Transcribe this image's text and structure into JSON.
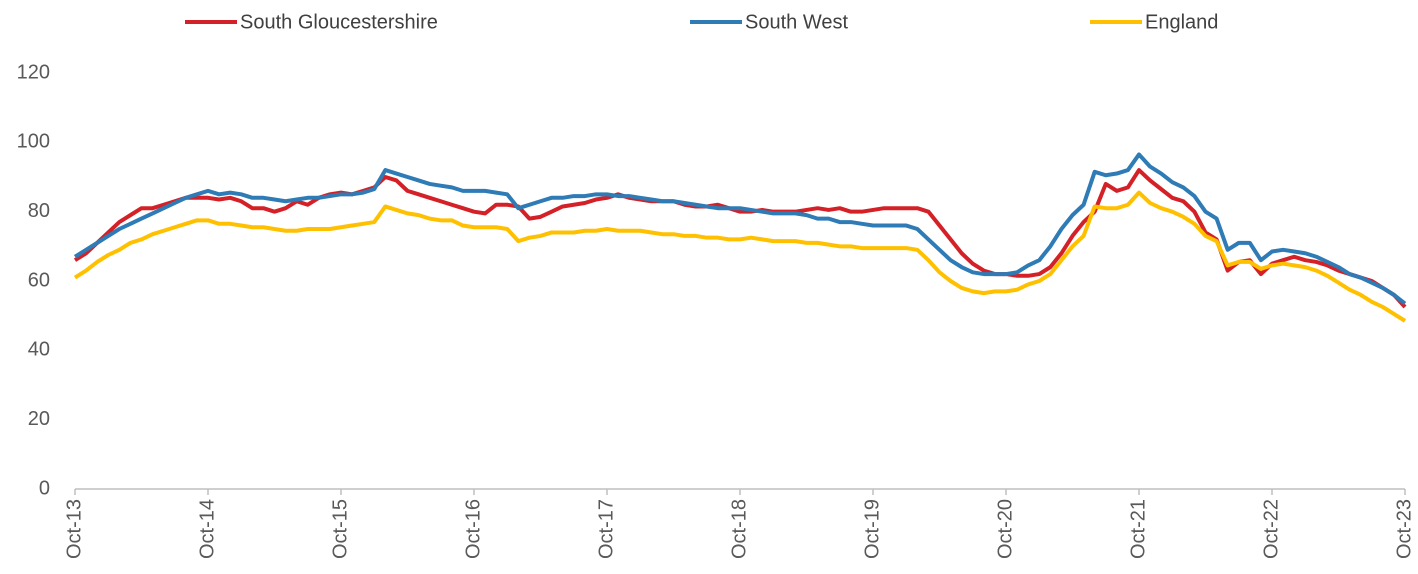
{
  "chart_data": {
    "type": "line",
    "categories": [
      "Oct-13",
      null,
      null,
      null,
      null,
      null,
      null,
      null,
      null,
      null,
      null,
      null,
      "Oct-14",
      null,
      null,
      null,
      null,
      null,
      null,
      null,
      null,
      null,
      null,
      null,
      "Oct-15",
      null,
      null,
      null,
      null,
      null,
      null,
      null,
      null,
      null,
      null,
      null,
      "Oct-16",
      null,
      null,
      null,
      null,
      null,
      null,
      null,
      null,
      null,
      null,
      null,
      "Oct-17",
      null,
      null,
      null,
      null,
      null,
      null,
      null,
      null,
      null,
      null,
      null,
      "Oct-18",
      null,
      null,
      null,
      null,
      null,
      null,
      null,
      null,
      null,
      null,
      null,
      "Oct-19",
      null,
      null,
      null,
      null,
      null,
      null,
      null,
      null,
      null,
      null,
      null,
      "Oct-20",
      null,
      null,
      null,
      null,
      null,
      null,
      null,
      null,
      null,
      null,
      null,
      "Oct-21",
      null,
      null,
      null,
      null,
      null,
      null,
      null,
      null,
      null,
      null,
      null,
      "Oct-22",
      null,
      null,
      null,
      null,
      null,
      null,
      null,
      null,
      null,
      null,
      null,
      "Oct-23"
    ],
    "series": [
      {
        "name": "South Gloucestershire",
        "color": "#d42027",
        "values": [
          66,
          68,
          71,
          74,
          77,
          79,
          81,
          81,
          82,
          83,
          84,
          84,
          84,
          83.5,
          84,
          83,
          81,
          81,
          80,
          81,
          83,
          82,
          84,
          85,
          85.5,
          85,
          86,
          87,
          90,
          89,
          86,
          85,
          84,
          83,
          82,
          81,
          80,
          79.5,
          82,
          82,
          81.5,
          78,
          78.5,
          80,
          81.5,
          82,
          82.5,
          83.5,
          84,
          85,
          84,
          83.5,
          83,
          83,
          83,
          82,
          81.5,
          81.5,
          82,
          81,
          80,
          80,
          80.5,
          80,
          80,
          80,
          80.5,
          81,
          80.5,
          81,
          80,
          80,
          80.5,
          81,
          81,
          81,
          81,
          80,
          76,
          72,
          68,
          65,
          63,
          62,
          62,
          61.5,
          61.5,
          62,
          64,
          68,
          73,
          77,
          80,
          88,
          86,
          87,
          92,
          89,
          86.5,
          84,
          83,
          80,
          74,
          72,
          63,
          65.5,
          66,
          62,
          65,
          66,
          67,
          66,
          65.5,
          64.5,
          63,
          62,
          61,
          60,
          58,
          56,
          52.5
        ]
      },
      {
        "name": "South West",
        "color": "#2e7bb6",
        "values": [
          67,
          69,
          71,
          73,
          75,
          76.5,
          78,
          79.5,
          81,
          82.5,
          84,
          85,
          86,
          85,
          85.5,
          85,
          84,
          84,
          83.5,
          83,
          83.5,
          84,
          84,
          84.5,
          85,
          85,
          85.5,
          86.5,
          92,
          91,
          90,
          89,
          88,
          87.5,
          87,
          86,
          86,
          86,
          85.5,
          85,
          81,
          82,
          83,
          84,
          84,
          84.5,
          84.5,
          85,
          85,
          84.5,
          84.5,
          84,
          83.5,
          83,
          83,
          82.5,
          82,
          81.5,
          81,
          81,
          81,
          80.5,
          80,
          79.5,
          79.5,
          79.5,
          79,
          78,
          78,
          77,
          77,
          76.5,
          76,
          76,
          76,
          76,
          75,
          72,
          69,
          66,
          64,
          62.5,
          62,
          62,
          62,
          62.5,
          64.5,
          66,
          70,
          75,
          79,
          82,
          91.5,
          90.5,
          91,
          92,
          96.5,
          93,
          91,
          88.5,
          87,
          84.5,
          80,
          78,
          69,
          71,
          71,
          66,
          68.5,
          69,
          68.5,
          68,
          67,
          65.5,
          64,
          62,
          61,
          59.5,
          58,
          56,
          53.5
        ]
      },
      {
        "name": "England",
        "color": "#ffc000",
        "values": [
          61,
          63,
          65.5,
          67.5,
          69,
          71,
          72,
          73.5,
          74.5,
          75.5,
          76.5,
          77.5,
          77.5,
          76.5,
          76.5,
          76,
          75.5,
          75.5,
          75,
          74.5,
          74.5,
          75,
          75,
          75,
          75.5,
          76,
          76.5,
          77,
          81.5,
          80.5,
          79.5,
          79,
          78,
          77.5,
          77.5,
          76,
          75.5,
          75.5,
          75.5,
          75,
          71.5,
          72.5,
          73,
          74,
          74,
          74,
          74.5,
          74.5,
          75,
          74.5,
          74.5,
          74.5,
          74,
          73.5,
          73.5,
          73,
          73,
          72.5,
          72.5,
          72,
          72,
          72.5,
          72,
          71.5,
          71.5,
          71.5,
          71,
          71,
          70.5,
          70,
          70,
          69.5,
          69.5,
          69.5,
          69.5,
          69.5,
          69,
          66,
          62.5,
          60,
          58,
          57,
          56.5,
          57,
          57,
          57.5,
          59,
          60,
          62,
          66,
          70,
          73,
          81.5,
          81,
          81,
          82,
          85.5,
          82.5,
          81,
          80,
          78.5,
          76.5,
          73,
          71.5,
          64.5,
          65.5,
          65.5,
          63.5,
          64.5,
          65,
          64.5,
          64,
          63,
          61.5,
          59.5,
          57.5,
          56,
          54,
          52.5,
          50.5,
          48.5
        ]
      }
    ],
    "ylim": [
      0,
      120
    ],
    "yticks": [
      0,
      20,
      40,
      60,
      80,
      100,
      120
    ],
    "grid": false,
    "legend": "top"
  }
}
